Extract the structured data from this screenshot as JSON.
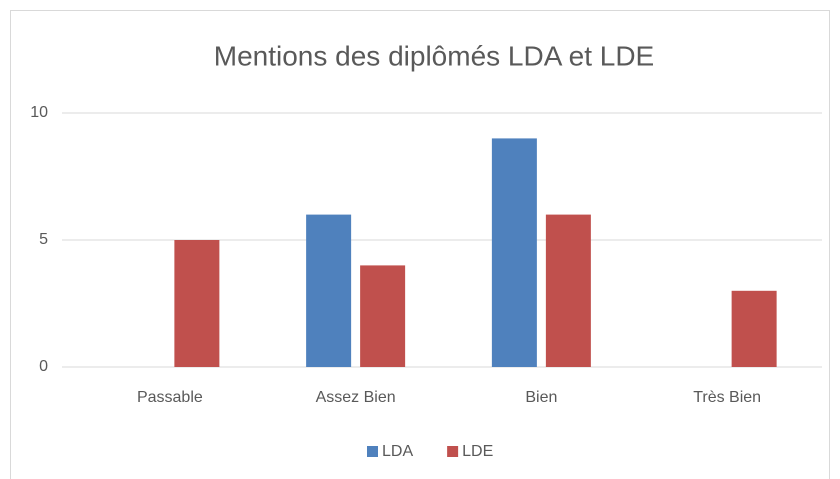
{
  "chart_data": {
    "type": "bar",
    "title": "Mentions des diplômés LDA et LDE",
    "categories": [
      "Passable",
      "Assez Bien",
      "Bien",
      "Très Bien"
    ],
    "series": [
      {
        "name": "LDA",
        "color": "#4f81bd",
        "values": [
          0,
          6,
          9,
          0
        ]
      },
      {
        "name": "LDE",
        "color": "#c0504d",
        "values": [
          5,
          4,
          6,
          3
        ]
      }
    ],
    "ylim": [
      0,
      10
    ],
    "yticks": [
      0,
      5,
      10
    ],
    "grid": true,
    "legend": "bottom"
  }
}
